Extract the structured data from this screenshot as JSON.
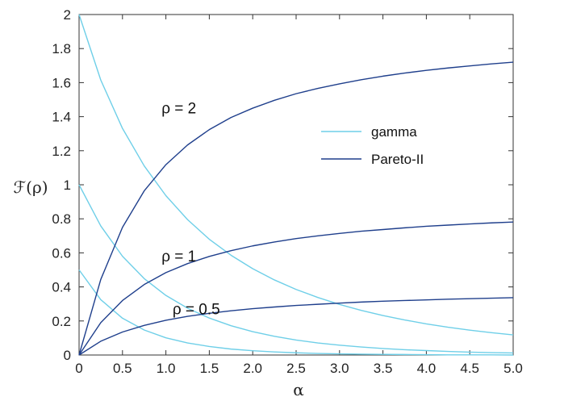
{
  "chart_data": {
    "type": "line",
    "title": "",
    "xlabel": "α",
    "ylabel": "ℱ(ρ)",
    "xlim": [
      0,
      5
    ],
    "ylim": [
      0,
      2
    ],
    "grid": false,
    "legend_position": "right",
    "x_ticks": [
      "0",
      "0.5",
      "1.0",
      "1.5",
      "2.0",
      "2.5",
      "3.0",
      "3.5",
      "4.0",
      "4.5",
      "5.0"
    ],
    "y_ticks": [
      "0",
      "0.2",
      "0.4",
      "0.6",
      "0.8",
      "1",
      "1.2",
      "1.4",
      "1.6",
      "1.8",
      "2"
    ],
    "x": [
      0,
      0.25,
      0.5,
      0.75,
      1.0,
      1.25,
      1.5,
      1.75,
      2.0,
      2.25,
      2.5,
      2.75,
      3.0,
      3.25,
      3.5,
      3.75,
      4.0,
      4.25,
      4.5,
      4.75,
      5.0
    ],
    "series": [
      {
        "name": "gamma",
        "rho": "2",
        "color": "#6fcfe8",
        "values": [
          2.0,
          1.615,
          1.331,
          1.111,
          0.936,
          0.795,
          0.68,
          0.586,
          0.507,
          0.441,
          0.385,
          0.338,
          0.297,
          0.262,
          0.232,
          0.206,
          0.183,
          0.163,
          0.146,
          0.131,
          0.118
        ]
      },
      {
        "name": "gamma",
        "rho": "1",
        "color": "#6fcfe8",
        "values": [
          1.0,
          0.758,
          0.58,
          0.449,
          0.35,
          0.275,
          0.217,
          0.172,
          0.137,
          0.11,
          0.088,
          0.071,
          0.058,
          0.047,
          0.038,
          0.031,
          0.026,
          0.021,
          0.017,
          0.014,
          0.012
        ]
      },
      {
        "name": "gamma",
        "rho": "0.5",
        "color": "#6fcfe8",
        "values": [
          0.5,
          0.325,
          0.216,
          0.147,
          0.101,
          0.071,
          0.05,
          0.035,
          0.025,
          0.018,
          0.013,
          0.009,
          0.007,
          0.005,
          0.004,
          0.003,
          0.002,
          0.001,
          0.001,
          0.001,
          0.0
        ]
      },
      {
        "name": "Pareto-II",
        "rho": "2",
        "color": "#1f3f8c",
        "values": [
          0.0,
          0.444,
          0.75,
          0.964,
          1.118,
          1.234,
          1.324,
          1.395,
          1.45,
          1.496,
          1.535,
          1.566,
          1.593,
          1.617,
          1.638,
          1.656,
          1.672,
          1.686,
          1.698,
          1.71,
          1.72
        ]
      },
      {
        "name": "Pareto-II",
        "rho": "1",
        "color": "#1f3f8c",
        "values": [
          0.0,
          0.19,
          0.32,
          0.414,
          0.484,
          0.537,
          0.579,
          0.613,
          0.641,
          0.664,
          0.684,
          0.7,
          0.714,
          0.727,
          0.737,
          0.747,
          0.756,
          0.763,
          0.77,
          0.776,
          0.781
        ]
      },
      {
        "name": "Pareto-II",
        "rho": "0.5",
        "color": "#1f3f8c",
        "values": [
          0.0,
          0.081,
          0.135,
          0.174,
          0.204,
          0.227,
          0.245,
          0.26,
          0.272,
          0.282,
          0.291,
          0.298,
          0.305,
          0.311,
          0.316,
          0.32,
          0.324,
          0.328,
          0.331,
          0.334,
          0.337
        ]
      }
    ],
    "annotations": [
      {
        "text": "ρ = 2",
        "x": 1.15,
        "y": 1.42
      },
      {
        "text": "ρ = 1",
        "x": 1.15,
        "y": 0.55
      },
      {
        "text": "ρ = 0.5",
        "x": 1.35,
        "y": 0.24
      }
    ],
    "legend": [
      {
        "label": "gamma",
        "color": "#6fcfe8"
      },
      {
        "label": "Pareto-II",
        "color": "#1f3f8c"
      }
    ]
  }
}
